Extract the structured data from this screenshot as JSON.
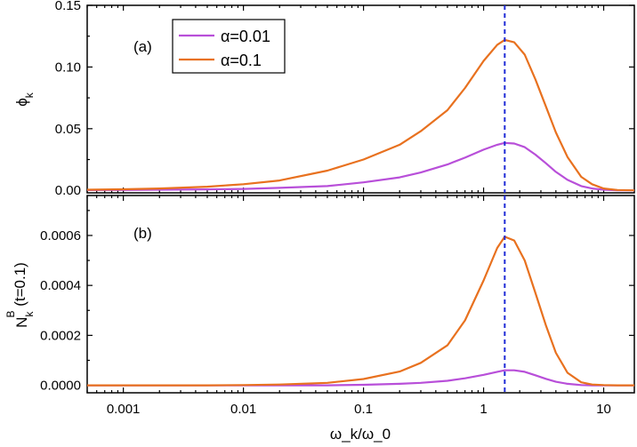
{
  "chart_data": {
    "type": "line",
    "x_scale": "log",
    "xlim": [
      0.0005,
      18
    ],
    "xlabel": "ω_k/ω_0",
    "x_ticks": [
      0.001,
      0.01,
      0.1,
      1,
      10
    ],
    "x_tick_labels": [
      "0.001",
      "0.01",
      "0.1",
      "1",
      "10"
    ],
    "marker_line_x": 1.5,
    "x": [
      0.0005,
      0.001,
      0.002,
      0.005,
      0.01,
      0.02,
      0.05,
      0.1,
      0.2,
      0.3,
      0.5,
      0.7,
      1.0,
      1.3,
      1.5,
      1.8,
      2.2,
      2.7,
      3.3,
      4.0,
      5.0,
      6.5,
      8.0,
      10,
      13,
      18
    ],
    "legend": {
      "position": "top-left",
      "entries": [
        {
          "label": "α=0.01",
          "color": "#b84fd9"
        },
        {
          "label": "α=0.1",
          "color": "#e8711f"
        }
      ]
    },
    "panels": [
      {
        "label": "(a)",
        "ylabel_main": "ϕ",
        "ylabel_sub": "k",
        "ylim": [
          -0.002,
          0.15
        ],
        "y_ticks": [
          0.0,
          0.05,
          0.1,
          0.15
        ],
        "y_tick_labels": [
          "0.00",
          "0.05",
          "0.10",
          "0.15"
        ],
        "series": [
          {
            "name": "α=0.01",
            "color": "#b84fd9",
            "values": [
              0.0002,
              0.0003,
              0.0005,
              0.0008,
              0.0012,
              0.002,
              0.0035,
              0.0065,
              0.0105,
              0.0145,
              0.021,
              0.0265,
              0.033,
              0.037,
              0.0385,
              0.038,
              0.035,
              0.029,
              0.022,
              0.015,
              0.0085,
              0.0035,
              0.0015,
              0.0005,
              0.0001,
              0.0
            ]
          },
          {
            "name": "α=0.1",
            "color": "#e8711f",
            "values": [
              0.0005,
              0.0009,
              0.0015,
              0.003,
              0.005,
              0.008,
              0.016,
              0.025,
              0.037,
              0.048,
              0.065,
              0.083,
              0.105,
              0.118,
              0.122,
              0.12,
              0.11,
              0.09,
              0.068,
              0.047,
              0.027,
              0.011,
              0.005,
              0.0015,
              0.0003,
              0.0
            ]
          }
        ]
      },
      {
        "label": "(b)",
        "ylabel_main": "N",
        "ylabel_sub": "k",
        "ylabel_sup": "B",
        "ylabel_suffix": " (t=0.1)",
        "ylim": [
          -3e-05,
          0.00076
        ],
        "y_ticks": [
          0.0,
          0.0002,
          0.0004,
          0.0006
        ],
        "y_tick_labels": [
          "0.0000",
          "0.0002",
          "0.0004",
          "0.0006"
        ],
        "series": [
          {
            "name": "α=0.01",
            "color": "#b84fd9",
            "values": [
              0,
              0,
              0,
              0,
              0,
              0,
              0,
              2e-06,
              6e-06,
              1e-05,
              1.8e-05,
              2.8e-05,
              4.2e-05,
              5.4e-05,
              6e-05,
              6e-05,
              5.4e-05,
              4e-05,
              2.6e-05,
              1.4e-05,
              6e-06,
              1e-06,
              0,
              0,
              0,
              0
            ]
          },
          {
            "name": "α=0.1",
            "color": "#e8711f",
            "values": [
              0,
              0,
              0,
              0,
              1e-06,
              3e-06,
              1e-05,
              2.5e-05,
              5.5e-05,
              9e-05,
              0.00016,
              0.00026,
              0.00042,
              0.00055,
              0.000595,
              0.00058,
              0.0005,
              0.00037,
              0.00024,
              0.00013,
              5e-05,
              1.2e-05,
              3e-06,
              1e-06,
              0,
              0
            ]
          }
        ]
      }
    ]
  }
}
